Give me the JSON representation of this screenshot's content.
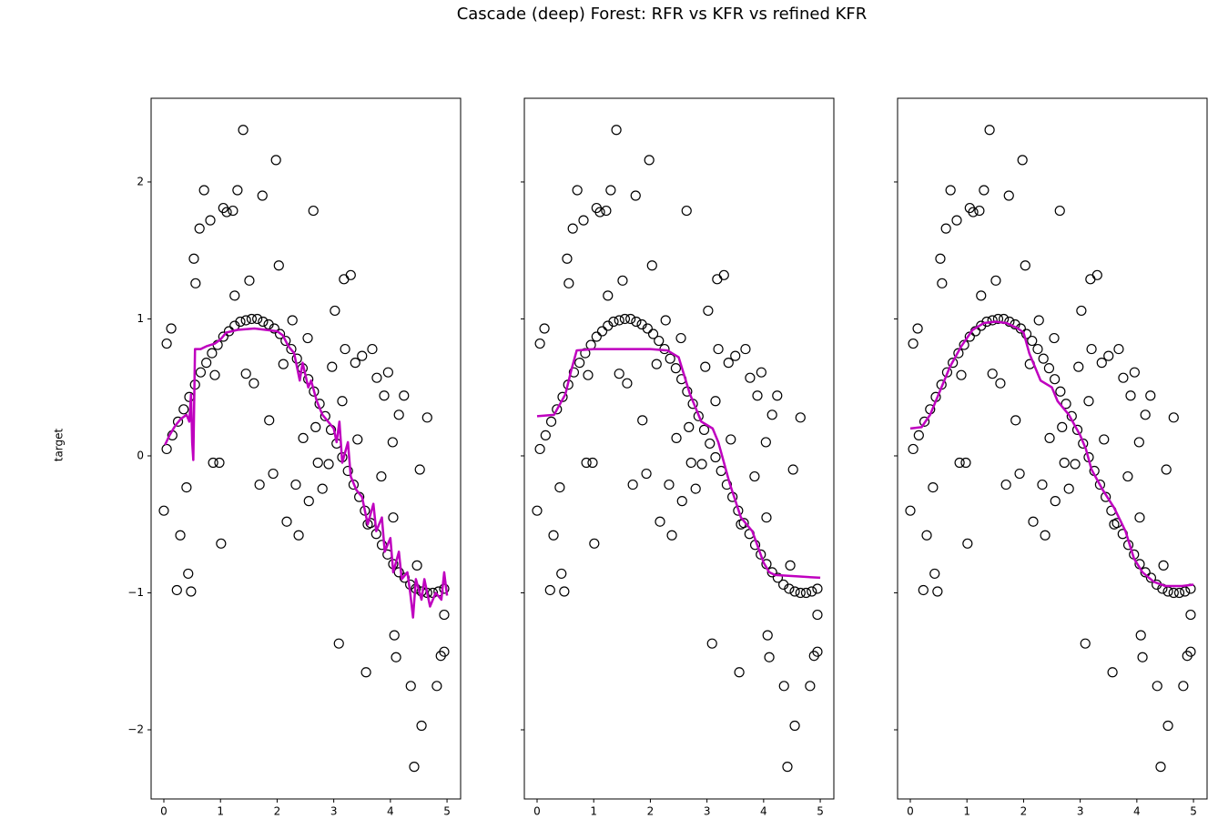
{
  "chart_data": {
    "type": "scatter",
    "title": "Cascade (deep) Forest: RFR vs KFR vs refined KFR",
    "ylabel": "target",
    "marker_color": "#000000",
    "x": [
      0.05,
      0.15,
      0.25,
      0.35,
      0.45,
      0.55,
      0.65,
      0.75,
      0.85,
      0.95,
      1.05,
      1.15,
      1.25,
      1.35,
      1.45,
      1.55,
      1.65,
      1.75,
      1.85,
      1.95,
      2.05,
      2.15,
      2.25,
      2.35,
      2.45,
      2.55,
      2.65,
      2.75,
      2.85,
      2.95,
      3.05,
      3.15,
      3.25,
      3.35,
      3.45,
      3.55,
      3.65,
      3.75,
      3.85,
      3.95,
      4.05,
      4.15,
      4.25,
      4.35,
      4.45,
      4.55,
      4.65,
      4.75,
      4.85,
      4.95,
      0.0,
      0.05,
      0.13,
      0.23,
      0.29,
      0.4,
      0.43,
      0.48,
      0.53,
      0.56,
      0.63,
      0.71,
      0.82,
      0.87,
      0.9,
      0.98,
      1.01,
      1.05,
      1.11,
      1.22,
      1.25,
      1.3,
      1.4,
      1.45,
      1.51,
      1.59,
      1.69,
      1.74,
      1.86,
      1.93,
      1.98,
      2.03,
      2.11,
      2.17,
      2.27,
      2.33,
      2.38,
      2.46,
      2.54,
      2.56,
      2.64,
      2.68,
      2.72,
      2.8,
      2.91,
      2.97,
      3.02,
      3.09,
      3.15,
      3.2,
      3.18,
      3.3,
      3.38,
      3.42,
      3.5,
      3.57,
      3.6,
      3.68,
      3.76,
      3.84,
      3.89,
      3.96,
      4.04,
      4.05,
      4.07,
      4.1,
      4.15,
      4.24,
      4.36,
      4.42,
      4.47,
      4.52,
      4.55,
      4.65,
      4.82,
      4.89,
      4.95,
      4.95
    ],
    "values": [
      0.05,
      0.15,
      0.25,
      0.34,
      0.43,
      0.52,
      0.61,
      0.68,
      0.75,
      0.81,
      0.87,
      0.91,
      0.95,
      0.98,
      0.99,
      1.0,
      1.0,
      0.98,
      0.96,
      0.93,
      0.89,
      0.84,
      0.78,
      0.71,
      0.64,
      0.56,
      0.47,
      0.38,
      0.29,
      0.19,
      0.09,
      -0.01,
      -0.11,
      -0.21,
      -0.3,
      -0.4,
      -0.49,
      -0.57,
      -0.65,
      -0.72,
      -0.79,
      -0.85,
      -0.89,
      -0.94,
      -0.97,
      -0.99,
      -1.0,
      -1.0,
      -0.99,
      -0.97,
      -0.4,
      0.82,
      0.93,
      -0.98,
      -0.58,
      -0.23,
      -0.86,
      -0.99,
      1.44,
      1.26,
      1.66,
      1.94,
      1.72,
      -0.05,
      0.59,
      -0.05,
      -0.64,
      1.81,
      1.78,
      1.79,
      1.17,
      1.94,
      2.38,
      0.6,
      1.28,
      0.53,
      -0.21,
      1.9,
      0.26,
      -0.13,
      2.16,
      1.39,
      0.67,
      -0.48,
      0.99,
      -0.21,
      -0.58,
      0.13,
      0.86,
      -0.33,
      1.79,
      0.21,
      -0.05,
      -0.24,
      -0.06,
      0.65,
      1.06,
      -1.37,
      0.4,
      0.78,
      1.29,
      1.32,
      0.68,
      0.12,
      0.73,
      -1.58,
      -0.5,
      0.78,
      0.57,
      -0.15,
      0.44,
      0.61,
      0.1,
      -0.45,
      -1.31,
      -1.47,
      0.3,
      0.44,
      -1.68,
      -2.27,
      -0.8,
      -0.1,
      -1.97,
      0.28,
      -1.68,
      -1.46,
      -1.16,
      -1.43
    ],
    "series": [
      {
        "color": "#bf00bf",
        "x": [
          0.02,
          0.1,
          0.2,
          0.3,
          0.4,
          0.45,
          0.48,
          0.5,
          0.52,
          0.55,
          0.65,
          0.75,
          0.9,
          1.0,
          1.1,
          1.3,
          1.6,
          1.8,
          2.0,
          2.1,
          2.2,
          2.3,
          2.4,
          2.45,
          2.55,
          2.6,
          2.7,
          2.8,
          2.9,
          3.0,
          3.05,
          3.1,
          3.15,
          3.25,
          3.3,
          3.4,
          3.5,
          3.6,
          3.7,
          3.75,
          3.85,
          3.9,
          4.0,
          4.05,
          4.15,
          4.2,
          4.3,
          4.35,
          4.4,
          4.45,
          4.55,
          4.6,
          4.7,
          4.8,
          4.9,
          4.95,
          5.0
        ],
        "values": [
          0.08,
          0.15,
          0.22,
          0.27,
          0.3,
          0.25,
          0.45,
          0.1,
          -0.03,
          0.78,
          0.78,
          0.8,
          0.82,
          0.85,
          0.9,
          0.92,
          0.93,
          0.92,
          0.91,
          0.88,
          0.8,
          0.75,
          0.55,
          0.68,
          0.5,
          0.55,
          0.4,
          0.3,
          0.25,
          0.2,
          0.1,
          0.25,
          -0.05,
          0.1,
          -0.15,
          -0.25,
          -0.3,
          -0.5,
          -0.35,
          -0.55,
          -0.45,
          -0.7,
          -0.6,
          -0.85,
          -0.7,
          -0.9,
          -0.85,
          -1.0,
          -1.18,
          -0.9,
          -1.05,
          -0.9,
          -1.1,
          -1.0,
          -1.05,
          -0.85,
          -1.02
        ]
      },
      {
        "color": "#bf00bf",
        "x": [
          0.0,
          0.3,
          0.5,
          0.6,
          0.7,
          1.0,
          1.5,
          2.0,
          2.3,
          2.5,
          2.7,
          2.9,
          3.1,
          3.2,
          3.4,
          3.6,
          3.8,
          4.0,
          4.1,
          4.2,
          4.6,
          5.0
        ],
        "values": [
          0.29,
          0.3,
          0.45,
          0.62,
          0.77,
          0.78,
          0.78,
          0.78,
          0.77,
          0.72,
          0.45,
          0.25,
          0.2,
          0.1,
          -0.2,
          -0.45,
          -0.55,
          -0.78,
          -0.85,
          -0.87,
          -0.88,
          -0.89
        ]
      },
      {
        "color": "#bf00bf",
        "x": [
          0.0,
          0.2,
          0.35,
          0.5,
          0.7,
          0.9,
          1.1,
          1.3,
          1.5,
          1.7,
          1.9,
          2.0,
          2.1,
          2.2,
          2.3,
          2.5,
          2.6,
          2.8,
          3.0,
          3.1,
          3.2,
          3.4,
          3.6,
          3.8,
          3.95,
          4.1,
          4.3,
          4.5,
          4.8,
          5.0
        ],
        "values": [
          0.2,
          0.21,
          0.3,
          0.45,
          0.65,
          0.8,
          0.92,
          0.97,
          0.98,
          0.97,
          0.93,
          0.9,
          0.75,
          0.65,
          0.55,
          0.5,
          0.4,
          0.3,
          0.15,
          0.05,
          -0.1,
          -0.25,
          -0.38,
          -0.55,
          -0.75,
          -0.85,
          -0.92,
          -0.95,
          -0.95,
          -0.94
        ]
      }
    ],
    "xlim": [
      -0.225,
      5.24
    ],
    "ylim": [
      -2.505,
      2.611
    ],
    "xticks": [
      0,
      1,
      2,
      3,
      4,
      5
    ],
    "yticks": [
      {
        "value": -2,
        "label": "−2"
      },
      {
        "value": -1,
        "label": "−1"
      },
      0,
      1,
      2
    ]
  }
}
